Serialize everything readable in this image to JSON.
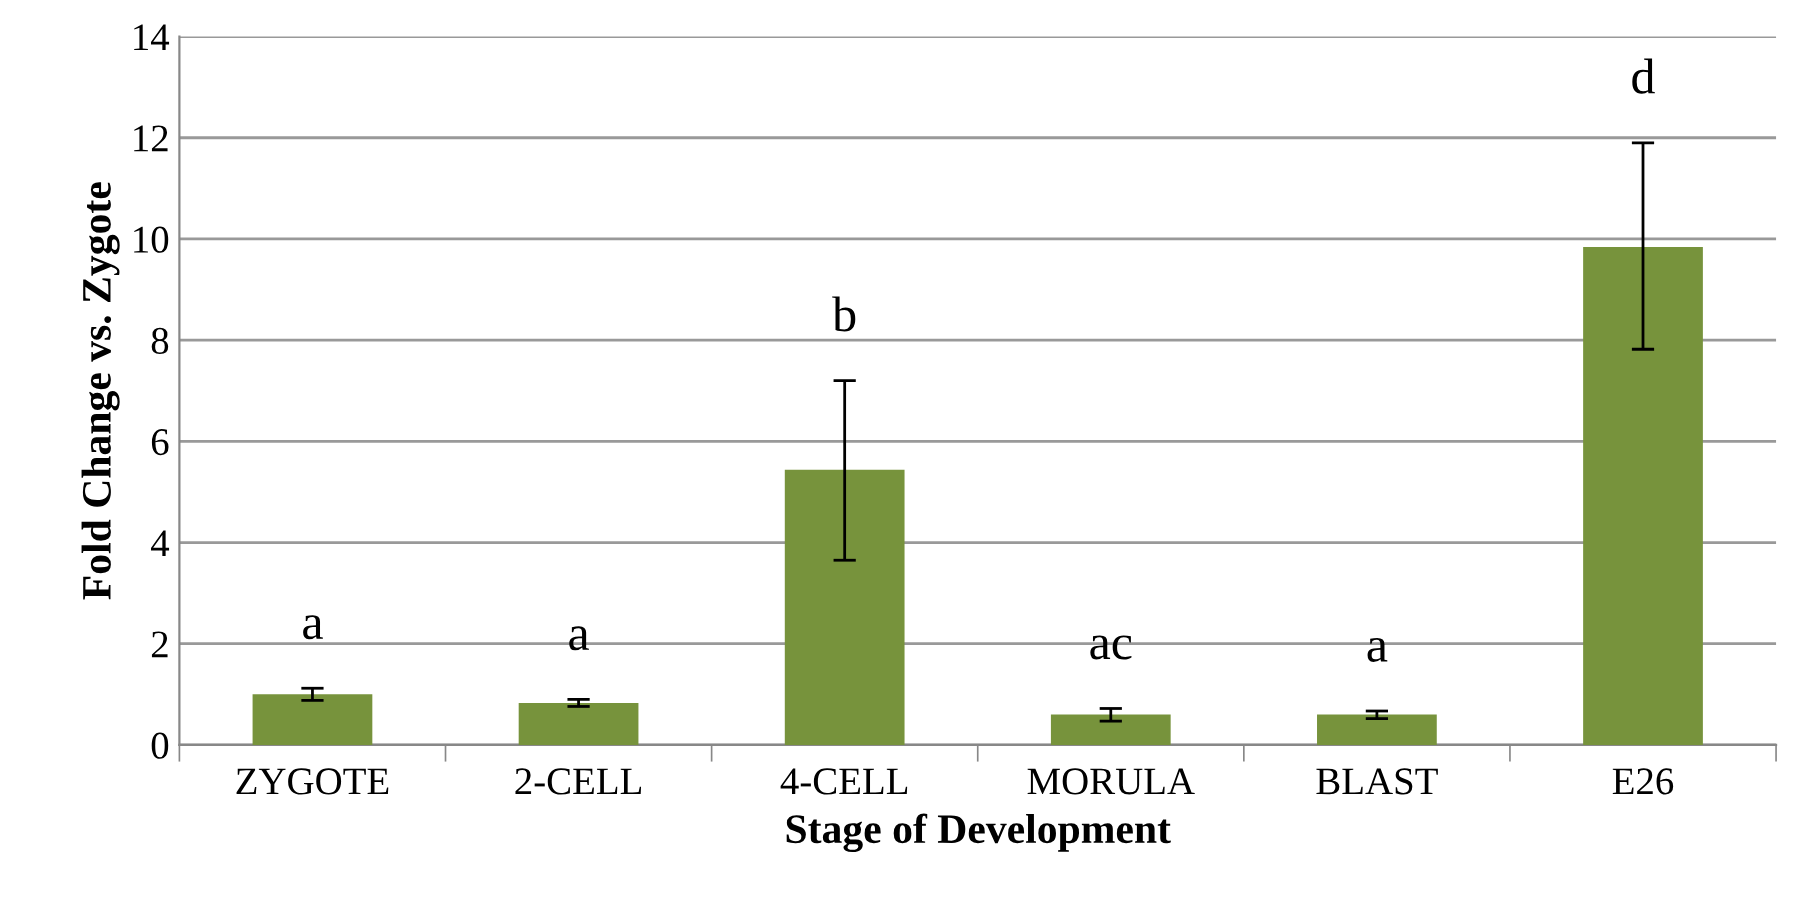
{
  "chart_data": {
    "type": "bar",
    "xlabel": "Stage of Development",
    "ylabel": "Fold Change vs. Zygote",
    "categories": [
      "ZYGOTE",
      "2-CELL",
      "4-CELL",
      "MORULA",
      "BLAST",
      "E26"
    ],
    "values": [
      1.0,
      0.83,
      5.44,
      0.6,
      0.6,
      9.84
    ],
    "errors": [
      [
        0.88,
        1.12
      ],
      [
        0.76,
        0.9
      ],
      [
        3.65,
        7.2
      ],
      [
        0.47,
        0.72
      ],
      [
        0.52,
        0.67
      ],
      [
        7.82,
        11.9
      ]
    ],
    "color": "#77933c",
    "ylim": [
      0,
      14
    ],
    "yticks": [
      0,
      2,
      4,
      6,
      8,
      10,
      12,
      14
    ],
    "grid": "y",
    "annotations": [
      "a",
      "a",
      "b",
      "ac",
      "a",
      "d"
    ]
  }
}
